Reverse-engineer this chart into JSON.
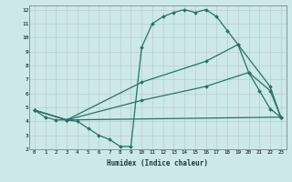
{
  "xlabel": "Humidex (Indice chaleur)",
  "bg_color": "#cce8e8",
  "line_color": "#2a7068",
  "grid_color": "#bbcccc",
  "xlim": [
    -0.5,
    23.5
  ],
  "ylim": [
    2,
    12.3
  ],
  "yticks": [
    2,
    3,
    4,
    5,
    6,
    7,
    8,
    9,
    10,
    11,
    12
  ],
  "xticks": [
    0,
    1,
    2,
    3,
    4,
    5,
    6,
    7,
    8,
    9,
    10,
    11,
    12,
    13,
    14,
    15,
    16,
    17,
    18,
    19,
    20,
    21,
    22,
    23
  ],
  "series": [
    {
      "x": [
        0,
        1,
        2,
        3,
        4,
        5,
        6,
        7,
        8,
        9,
        10,
        11,
        12,
        13,
        14,
        15,
        16,
        17,
        18,
        19,
        20,
        21,
        22,
        23
      ],
      "y": [
        4.8,
        4.3,
        4.1,
        4.1,
        4.0,
        3.5,
        3.0,
        2.7,
        2.2,
        2.2,
        9.3,
        11.0,
        11.5,
        11.8,
        12.0,
        11.8,
        12.0,
        11.5,
        10.5,
        9.5,
        7.5,
        6.2,
        4.9,
        4.3
      ]
    },
    {
      "x": [
        0,
        3,
        10,
        16,
        19,
        22,
        23
      ],
      "y": [
        4.8,
        4.1,
        6.8,
        8.3,
        9.5,
        6.5,
        4.3
      ]
    },
    {
      "x": [
        0,
        3,
        10,
        16,
        20,
        22,
        23
      ],
      "y": [
        4.8,
        4.1,
        5.5,
        6.5,
        7.5,
        6.2,
        4.3
      ]
    },
    {
      "x": [
        0,
        3,
        23
      ],
      "y": [
        4.8,
        4.1,
        4.3
      ]
    }
  ]
}
